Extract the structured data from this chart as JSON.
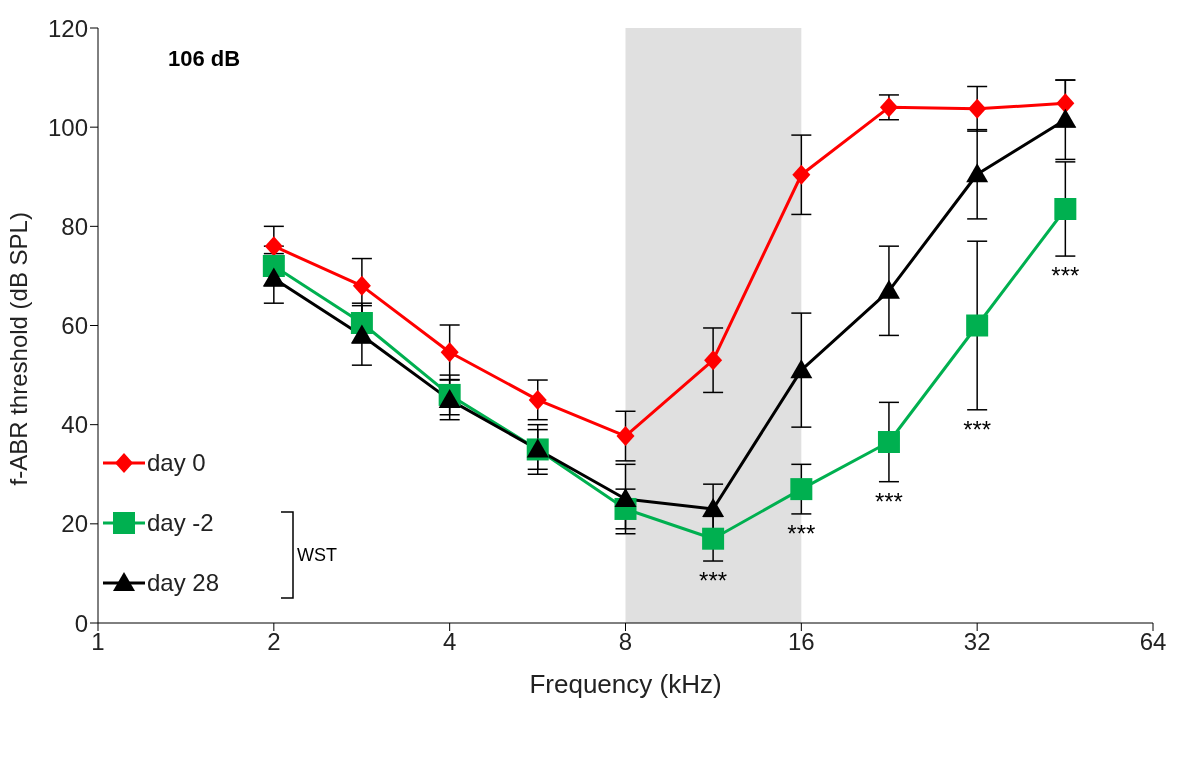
{
  "chart_data": {
    "type": "line",
    "xlabel": "Frequency (kHz)",
    "ylabel": "f-ABR threshold (dB SPL)",
    "x": [
      2,
      2.83,
      4,
      5.66,
      8,
      11.3,
      16,
      22.6,
      32,
      45.3
    ],
    "series": [
      {
        "name": "day 0",
        "color": "#ff0000",
        "marker": "diamond",
        "values": [
          76,
          68,
          54.6,
          45,
          37.7,
          53,
          90.4,
          104,
          103.7,
          104.8
        ],
        "errors": [
          4,
          5.5,
          5.5,
          4,
          5,
          6.5,
          8,
          2.5,
          4.5,
          4.7
        ]
      },
      {
        "name": "day -2",
        "color": "#00b050",
        "marker": "square",
        "values": [
          72,
          60.5,
          46,
          35,
          23,
          17,
          27,
          36.5,
          60,
          83.5
        ],
        "errors": [
          4,
          4,
          4,
          4,
          4,
          4.5,
          5,
          8,
          17,
          9.5
        ]
      },
      {
        "name": "day 28",
        "color": "#000000",
        "marker": "triangle",
        "values": [
          69.5,
          58,
          45,
          35,
          25,
          23,
          51,
          67,
          90.5,
          101.5
        ],
        "errors": [
          5,
          6,
          4,
          5,
          7,
          5,
          11.5,
          9,
          9,
          8
        ]
      }
    ],
    "xlim": [
      1,
      64
    ],
    "xticks": [
      1,
      2,
      4,
      8,
      16,
      32,
      64
    ],
    "log": "x",
    "ylim": [
      0,
      120
    ],
    "yticks": [
      0,
      20,
      40,
      60,
      80,
      100,
      120
    ],
    "bands": [
      {
        "axis": "x",
        "from": 8,
        "to": 16,
        "color": "#e0e0e0"
      }
    ],
    "annotations": [
      "106 dB",
      "WST",
      {
        "text": "***",
        "x": 11.3,
        "y": 12.5
      },
      {
        "text": "***",
        "x": 16,
        "y": 22
      },
      {
        "text": "***",
        "x": 22.6,
        "y": 28.5
      },
      {
        "text": "***",
        "x": 32,
        "y": 43
      },
      {
        "text": "***",
        "x": 45.3,
        "y": 74
      }
    ],
    "legend": "bottom left",
    "grid": false,
    "line_style": "solid"
  }
}
